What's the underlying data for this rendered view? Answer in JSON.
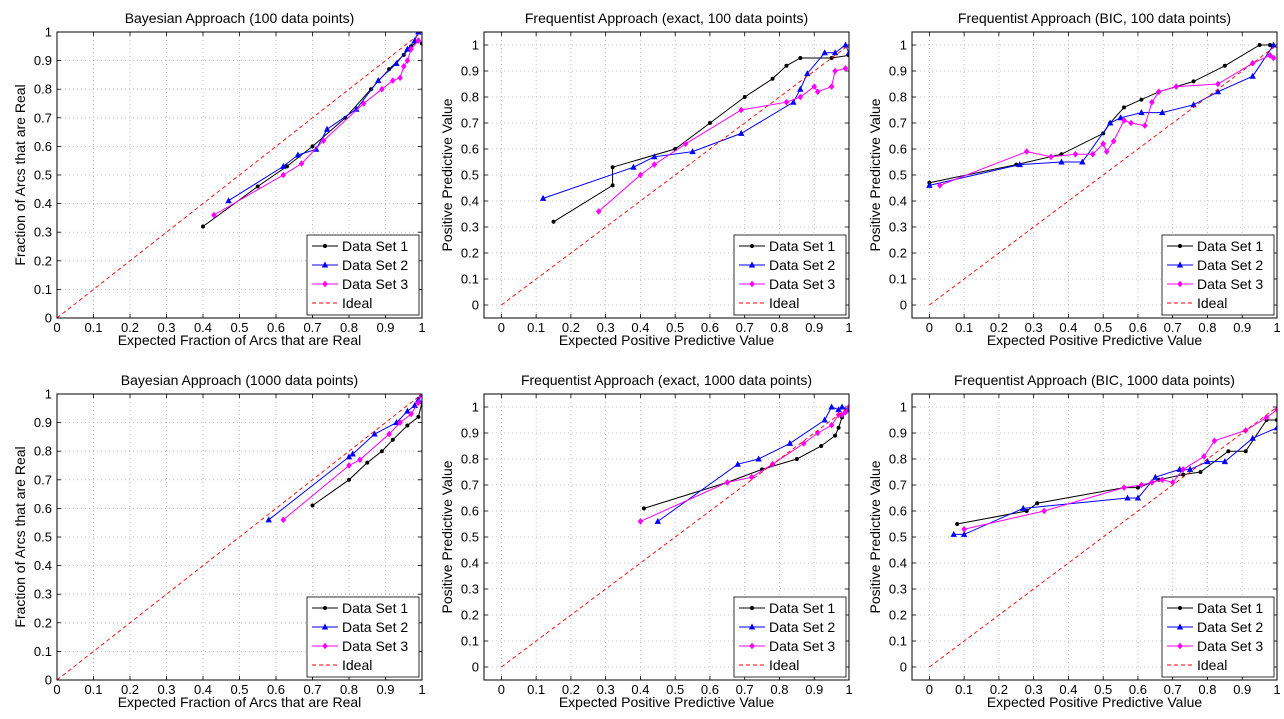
{
  "figure": {
    "background": "#ffffff"
  },
  "legend_entries": [
    "Data Set 1",
    "Data Set 2",
    "Data Set 3",
    "Ideal"
  ],
  "colors": {
    "series1": "#000000",
    "series2": "#0000ff",
    "series3": "#ff00ff",
    "ideal": "#ff0000"
  },
  "chart_data": [
    {
      "type": "line",
      "title": "Bayesian Approach (100 data points)",
      "xlabel": "Expected Fraction of Arcs that are Real",
      "ylabel": "Fraction of Arcs that are Real",
      "xlim": [
        0,
        1
      ],
      "ylim": [
        0,
        1
      ],
      "xticks": [
        0,
        0.1,
        0.2,
        0.3,
        0.4,
        0.5,
        0.6,
        0.7,
        0.8,
        0.9,
        1
      ],
      "yticks": [
        0,
        0.1,
        0.2,
        0.3,
        0.4,
        0.5,
        0.6,
        0.7,
        0.8,
        0.9,
        1
      ],
      "grid": true,
      "legend_position": "bottom-right",
      "series": [
        {
          "name": "Data Set 1",
          "x": [
            0.4,
            0.55,
            0.63,
            0.7,
            0.79,
            0.86,
            0.91,
            0.95,
            0.97,
            0.99,
            1.0
          ],
          "y": [
            0.32,
            0.46,
            0.53,
            0.6,
            0.7,
            0.8,
            0.87,
            0.92,
            0.95,
            0.97,
            0.96
          ]
        },
        {
          "name": "Data Set 2",
          "x": [
            0.47,
            0.62,
            0.66,
            0.71,
            0.74,
            0.82,
            0.88,
            0.93,
            0.96,
            0.98,
            0.99
          ],
          "y": [
            0.41,
            0.53,
            0.57,
            0.59,
            0.66,
            0.73,
            0.83,
            0.89,
            0.94,
            0.97,
            1.0
          ]
        },
        {
          "name": "Data Set 3",
          "x": [
            0.43,
            0.62,
            0.67,
            0.73,
            0.84,
            0.89,
            0.92,
            0.94,
            0.95,
            0.96,
            0.97,
            0.99
          ],
          "y": [
            0.36,
            0.5,
            0.54,
            0.62,
            0.75,
            0.8,
            0.83,
            0.84,
            0.88,
            0.9,
            0.94,
            0.97
          ]
        },
        {
          "name": "Ideal",
          "x": [
            0,
            1
          ],
          "y": [
            0,
            1
          ]
        }
      ]
    },
    {
      "type": "line",
      "title": "Frequentist Approach (exact, 100 data points)",
      "xlabel": "Expected Positive Predictive Value",
      "ylabel": "Positive Predictive Value",
      "xlim": [
        -0.05,
        1
      ],
      "ylim": [
        -0.05,
        1.05
      ],
      "xticks": [
        0,
        0.1,
        0.2,
        0.3,
        0.4,
        0.5,
        0.6,
        0.7,
        0.8,
        0.9,
        1
      ],
      "yticks": [
        0,
        0.1,
        0.2,
        0.3,
        0.4,
        0.5,
        0.6,
        0.7,
        0.8,
        0.9,
        1
      ],
      "grid": true,
      "legend_position": "bottom-right",
      "series": [
        {
          "name": "Data Set 1",
          "x": [
            0.15,
            0.32,
            0.32,
            0.5,
            0.6,
            0.7,
            0.78,
            0.82,
            0.86,
            0.95,
            1.0
          ],
          "y": [
            0.32,
            0.46,
            0.53,
            0.6,
            0.7,
            0.8,
            0.87,
            0.92,
            0.95,
            0.95,
            0.96
          ]
        },
        {
          "name": "Data Set 2",
          "x": [
            0.12,
            0.38,
            0.44,
            0.55,
            0.69,
            0.84,
            0.86,
            0.88,
            0.93,
            0.96,
            0.99,
            1.0
          ],
          "y": [
            0.41,
            0.53,
            0.57,
            0.59,
            0.66,
            0.78,
            0.83,
            0.89,
            0.97,
            0.97,
            1.0,
            0.97
          ]
        },
        {
          "name": "Data Set 3",
          "x": [
            0.28,
            0.4,
            0.44,
            0.53,
            0.69,
            0.82,
            0.86,
            0.9,
            0.91,
            0.95,
            0.96,
            0.99
          ],
          "y": [
            0.36,
            0.5,
            0.54,
            0.62,
            0.75,
            0.78,
            0.8,
            0.84,
            0.82,
            0.84,
            0.9,
            0.91
          ]
        },
        {
          "name": "Ideal",
          "x": [
            0,
            1
          ],
          "y": [
            0,
            1
          ]
        }
      ]
    },
    {
      "type": "line",
      "title": "Frequentist Approach (BIC, 100 data points)",
      "xlabel": "Expected Positive Predictive Value",
      "ylabel": "Positive Predictive Value",
      "xlim": [
        -0.05,
        1
      ],
      "ylim": [
        -0.05,
        1.05
      ],
      "xticks": [
        0,
        0.1,
        0.2,
        0.3,
        0.4,
        0.5,
        0.6,
        0.7,
        0.8,
        0.9,
        1
      ],
      "yticks": [
        0,
        0.1,
        0.2,
        0.3,
        0.4,
        0.5,
        0.6,
        0.7,
        0.8,
        0.9,
        1
      ],
      "grid": true,
      "legend_position": "bottom-right",
      "series": [
        {
          "name": "Data Set 1",
          "x": [
            0.0,
            0.25,
            0.38,
            0.5,
            0.52,
            0.56,
            0.61,
            0.66,
            0.71,
            0.76,
            0.85,
            0.95,
            0.98
          ],
          "y": [
            0.47,
            0.54,
            0.58,
            0.66,
            0.7,
            0.76,
            0.79,
            0.82,
            0.84,
            0.86,
            0.92,
            1.0,
            1.0
          ]
        },
        {
          "name": "Data Set 2",
          "x": [
            0.0,
            0.26,
            0.38,
            0.44,
            0.52,
            0.55,
            0.61,
            0.67,
            0.76,
            0.83,
            0.93,
            0.99
          ],
          "y": [
            0.46,
            0.54,
            0.55,
            0.55,
            0.7,
            0.72,
            0.74,
            0.74,
            0.77,
            0.82,
            0.88,
            1.0
          ]
        },
        {
          "name": "Data Set 3",
          "x": [
            0.03,
            0.28,
            0.35,
            0.42,
            0.47,
            0.5,
            0.51,
            0.53,
            0.56,
            0.58,
            0.62,
            0.64,
            0.66,
            0.71,
            0.83,
            0.93,
            0.98,
            0.99
          ],
          "y": [
            0.46,
            0.59,
            0.57,
            0.58,
            0.58,
            0.62,
            0.59,
            0.63,
            0.71,
            0.7,
            0.69,
            0.78,
            0.82,
            0.84,
            0.85,
            0.93,
            0.96,
            0.95
          ]
        },
        {
          "name": "Ideal",
          "x": [
            0,
            1
          ],
          "y": [
            0,
            1
          ]
        }
      ]
    },
    {
      "type": "line",
      "title": "Bayesian Approach (1000 data points)",
      "xlabel": "Expected Fraction of Arcs that are Real",
      "ylabel": "Fraction of Arcs that are Real",
      "xlim": [
        0,
        1
      ],
      "ylim": [
        0,
        1
      ],
      "xticks": [
        0,
        0.1,
        0.2,
        0.3,
        0.4,
        0.5,
        0.6,
        0.7,
        0.8,
        0.9,
        1
      ],
      "yticks": [
        0,
        0.1,
        0.2,
        0.3,
        0.4,
        0.5,
        0.6,
        0.7,
        0.8,
        0.9,
        1
      ],
      "grid": true,
      "legend_position": "bottom-right",
      "series": [
        {
          "name": "Data Set 1",
          "x": [
            0.7,
            0.8,
            0.85,
            0.89,
            0.92,
            0.96,
            0.99,
            1.0
          ],
          "y": [
            0.61,
            0.7,
            0.76,
            0.8,
            0.84,
            0.89,
            0.92,
            0.97
          ]
        },
        {
          "name": "Data Set 2",
          "x": [
            0.58,
            0.8,
            0.81,
            0.87,
            0.93,
            0.96,
            0.98,
            0.99,
            1.0
          ],
          "y": [
            0.56,
            0.78,
            0.79,
            0.86,
            0.9,
            0.94,
            0.96,
            0.98,
            1.0
          ]
        },
        {
          "name": "Data Set 3",
          "x": [
            0.62,
            0.8,
            0.83,
            0.91,
            0.94,
            0.97,
            0.99,
            1.0
          ],
          "y": [
            0.56,
            0.75,
            0.77,
            0.86,
            0.9,
            0.93,
            0.97,
            1.0
          ]
        },
        {
          "name": "Ideal",
          "x": [
            0,
            1
          ],
          "y": [
            0,
            1
          ]
        }
      ]
    },
    {
      "type": "line",
      "title": "Frequentist Approach (exact, 1000 data points)",
      "xlabel": "Expected Positive Predictive Value",
      "ylabel": "Positive Predictive Value",
      "xlim": [
        -0.05,
        1
      ],
      "ylim": [
        -0.05,
        1.05
      ],
      "xticks": [
        0,
        0.1,
        0.2,
        0.3,
        0.4,
        0.5,
        0.6,
        0.7,
        0.8,
        0.9,
        1
      ],
      "yticks": [
        0,
        0.1,
        0.2,
        0.3,
        0.4,
        0.5,
        0.6,
        0.7,
        0.8,
        0.9,
        1
      ],
      "grid": true,
      "legend_position": "bottom-right",
      "series": [
        {
          "name": "Data Set 1",
          "x": [
            0.41,
            0.65,
            0.75,
            0.85,
            0.92,
            0.96,
            0.97,
            0.98,
            1.0
          ],
          "y": [
            0.61,
            0.71,
            0.76,
            0.8,
            0.85,
            0.89,
            0.92,
            0.96,
            1.0
          ]
        },
        {
          "name": "Data Set 2",
          "x": [
            0.45,
            0.68,
            0.74,
            0.83,
            0.93,
            0.95,
            0.97,
            0.98,
            1.0
          ],
          "y": [
            0.56,
            0.78,
            0.8,
            0.86,
            0.95,
            1.0,
            0.99,
            1.0,
            0.99
          ]
        },
        {
          "name": "Data Set 3",
          "x": [
            0.4,
            0.65,
            0.72,
            0.78,
            0.87,
            0.91,
            0.95,
            0.97,
            0.98,
            0.99,
            1.0
          ],
          "y": [
            0.56,
            0.71,
            0.73,
            0.78,
            0.86,
            0.9,
            0.93,
            0.97,
            0.97,
            0.98,
            1.0
          ]
        },
        {
          "name": "Ideal",
          "x": [
            0,
            1
          ],
          "y": [
            0,
            1
          ]
        }
      ]
    },
    {
      "type": "line",
      "title": "Frequentist Approach (BIC, 1000 data points)",
      "xlabel": "Expected Positive Predictive Value",
      "ylabel": "Positive Predictive Value",
      "xlim": [
        -0.05,
        1
      ],
      "ylim": [
        -0.05,
        1.05
      ],
      "xticks": [
        0,
        0.1,
        0.2,
        0.3,
        0.4,
        0.5,
        0.6,
        0.7,
        0.8,
        0.9,
        1
      ],
      "yticks": [
        0,
        0.1,
        0.2,
        0.3,
        0.4,
        0.5,
        0.6,
        0.7,
        0.8,
        0.9,
        1
      ],
      "grid": true,
      "legend_position": "bottom-right",
      "series": [
        {
          "name": "Data Set 1",
          "x": [
            0.08,
            0.28,
            0.31,
            0.56,
            0.6,
            0.66,
            0.73,
            0.78,
            0.86,
            0.91,
            0.97,
            1.0
          ],
          "y": [
            0.55,
            0.6,
            0.63,
            0.69,
            0.69,
            0.72,
            0.74,
            0.75,
            0.83,
            0.83,
            0.95,
            0.95
          ]
        },
        {
          "name": "Data Set 2",
          "x": [
            0.07,
            0.1,
            0.27,
            0.57,
            0.6,
            0.65,
            0.72,
            0.75,
            0.8,
            0.85,
            0.93,
            1.0
          ],
          "y": [
            0.51,
            0.51,
            0.61,
            0.65,
            0.65,
            0.73,
            0.76,
            0.76,
            0.79,
            0.79,
            0.88,
            0.92
          ]
        },
        {
          "name": "Data Set 3",
          "x": [
            0.1,
            0.33,
            0.56,
            0.61,
            0.64,
            0.67,
            0.7,
            0.73,
            0.79,
            0.82,
            0.91,
            0.97,
            1.0
          ],
          "y": [
            0.53,
            0.6,
            0.69,
            0.7,
            0.71,
            0.72,
            0.71,
            0.76,
            0.81,
            0.87,
            0.91,
            0.96,
            0.99
          ]
        },
        {
          "name": "Ideal",
          "x": [
            0,
            1
          ],
          "y": [
            0,
            1
          ]
        }
      ]
    }
  ]
}
